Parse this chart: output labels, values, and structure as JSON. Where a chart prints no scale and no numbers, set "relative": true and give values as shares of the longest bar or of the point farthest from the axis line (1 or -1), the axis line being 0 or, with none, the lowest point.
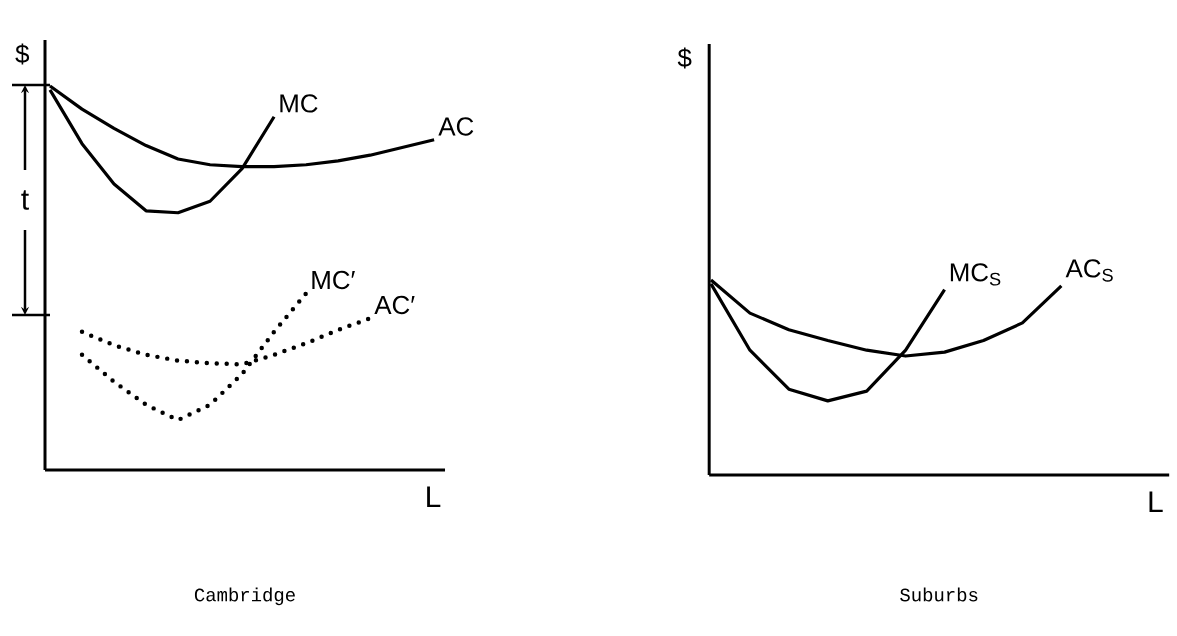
{
  "chart_data": [
    {
      "type": "line",
      "title": "Cambridge",
      "xlabel": "L",
      "ylabel": "$",
      "relative": true,
      "categories": [
        null,
        null,
        null,
        null,
        null,
        null,
        null,
        null,
        null,
        null,
        null,
        null,
        null
      ],
      "annotations": [
        "t"
      ],
      "series": [
        {
          "name": "MC",
          "color": "#000000",
          "line_style": "solid",
          "values": [
            0.99,
            0.85,
            0.745,
            0.675,
            0.67,
            0.7,
            0.785,
            0.92,
            null,
            null,
            null,
            null,
            null
          ]
        },
        {
          "name": "AC",
          "color": "#000000",
          "line_style": "solid",
          "values": [
            1.0,
            0.94,
            0.89,
            0.845,
            0.81,
            0.795,
            0.79,
            0.79,
            0.795,
            0.805,
            0.82,
            0.84,
            0.86
          ]
        },
        {
          "name": "MC′",
          "color": "#000000",
          "line_style": "dotted",
          "values": [
            null,
            0.3,
            0.23,
            0.17,
            0.13,
            0.17,
            0.25,
            0.36,
            0.46,
            null,
            null,
            null,
            null
          ]
        },
        {
          "name": "AC′",
          "color": "#000000",
          "line_style": "dotted",
          "values": [
            null,
            0.36,
            0.325,
            0.3,
            0.285,
            0.278,
            0.275,
            0.3,
            0.33,
            0.365,
            0.395,
            null,
            null
          ]
        }
      ]
    },
    {
      "type": "line",
      "title": "Suburbs",
      "xlabel": "L",
      "ylabel": "$",
      "relative": true,
      "categories": [
        null,
        null,
        null,
        null,
        null,
        null,
        null,
        null,
        null,
        null
      ],
      "series": [
        {
          "name": "MC$_{S}$",
          "color": "#000000",
          "line_style": "solid",
          "values": [
            0.98,
            0.64,
            0.44,
            0.38,
            0.43,
            0.64,
            0.95,
            null,
            null,
            null
          ]
        },
        {
          "name": "AC$_{S}$",
          "color": "#000000",
          "line_style": "solid",
          "values": [
            1.0,
            0.83,
            0.745,
            0.69,
            0.64,
            0.61,
            0.63,
            0.69,
            0.78,
            0.97
          ]
        }
      ]
    }
  ]
}
